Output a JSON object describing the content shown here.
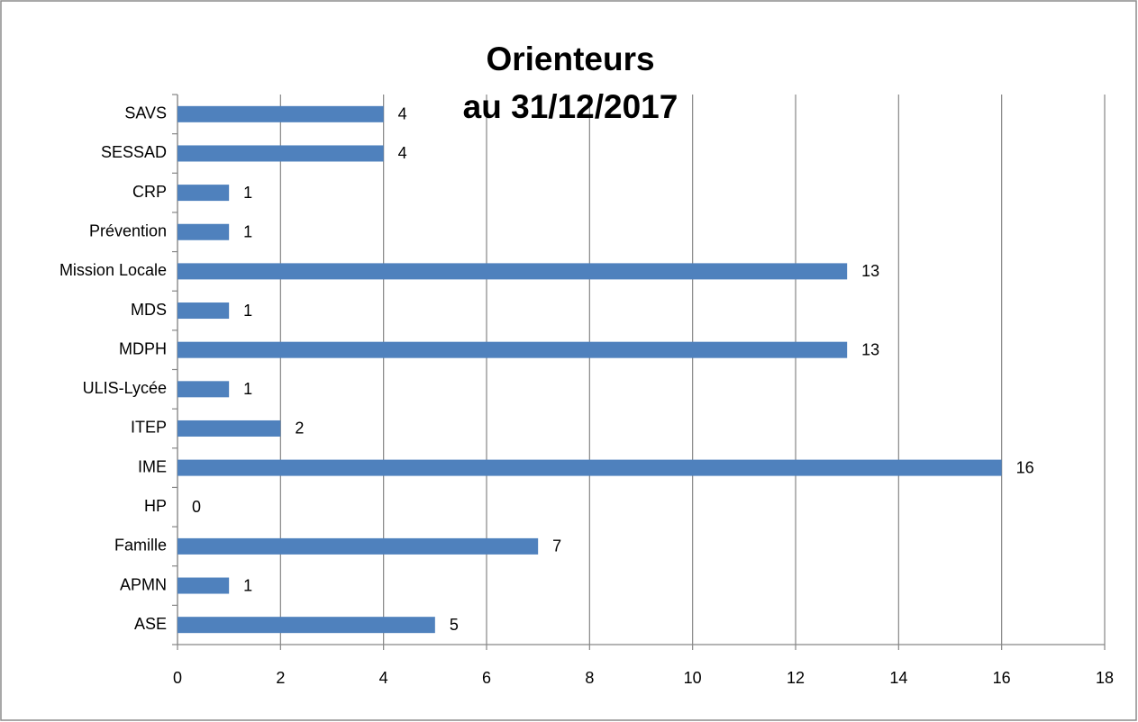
{
  "chart_data": {
    "type": "barh",
    "title": [
      "Orienteurs",
      "au 31/12/2017"
    ],
    "categories": [
      "ASE",
      "APMN",
      "Famille",
      "HP",
      "IME",
      "ITEP",
      "ULIS-Lycée",
      "MDPH",
      "MDS",
      "Mission Locale",
      "Prévention",
      "CRP",
      "SESSAD",
      "SAVS"
    ],
    "values": [
      5,
      1,
      7,
      0,
      16,
      2,
      1,
      13,
      1,
      13,
      1,
      1,
      4,
      4
    ],
    "color": "#4f81bd",
    "xlim": [
      0,
      18
    ],
    "xticks": [
      0,
      2,
      4,
      6,
      8,
      10,
      12,
      14,
      16,
      18
    ],
    "grid": true
  }
}
